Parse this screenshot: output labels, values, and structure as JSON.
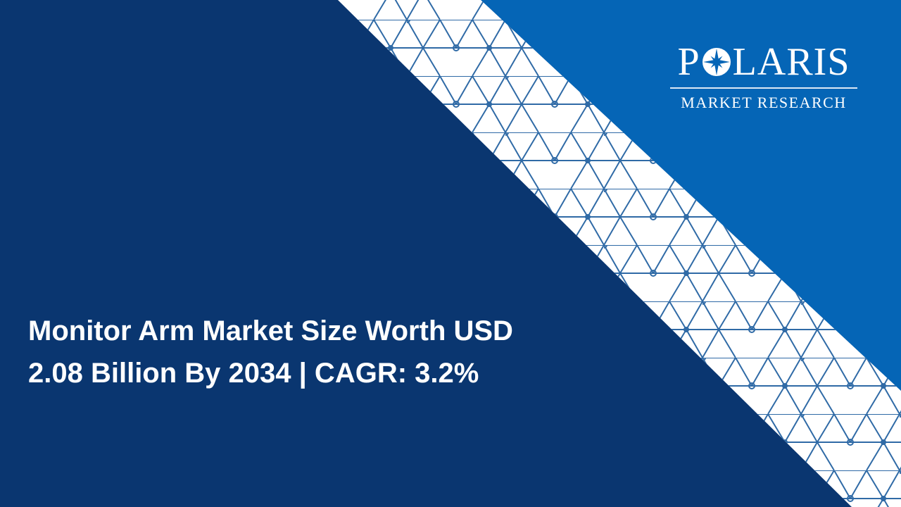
{
  "colors": {
    "dark_panel": "#0a3670",
    "light_panel": "#0565b6",
    "stripe": "#ffffff",
    "lattice": "#2f6aa6"
  },
  "logo": {
    "brand_prefix": "P",
    "brand_suffix": "LARIS",
    "brand_full": "POLARIS",
    "tagline": "MARKET RESEARCH",
    "icon": "compass-star-icon"
  },
  "headline": {
    "line1": "Monitor Arm Market Size Worth USD",
    "line2": "2.08 Billion By 2034 | CAGR: 3.2%"
  }
}
